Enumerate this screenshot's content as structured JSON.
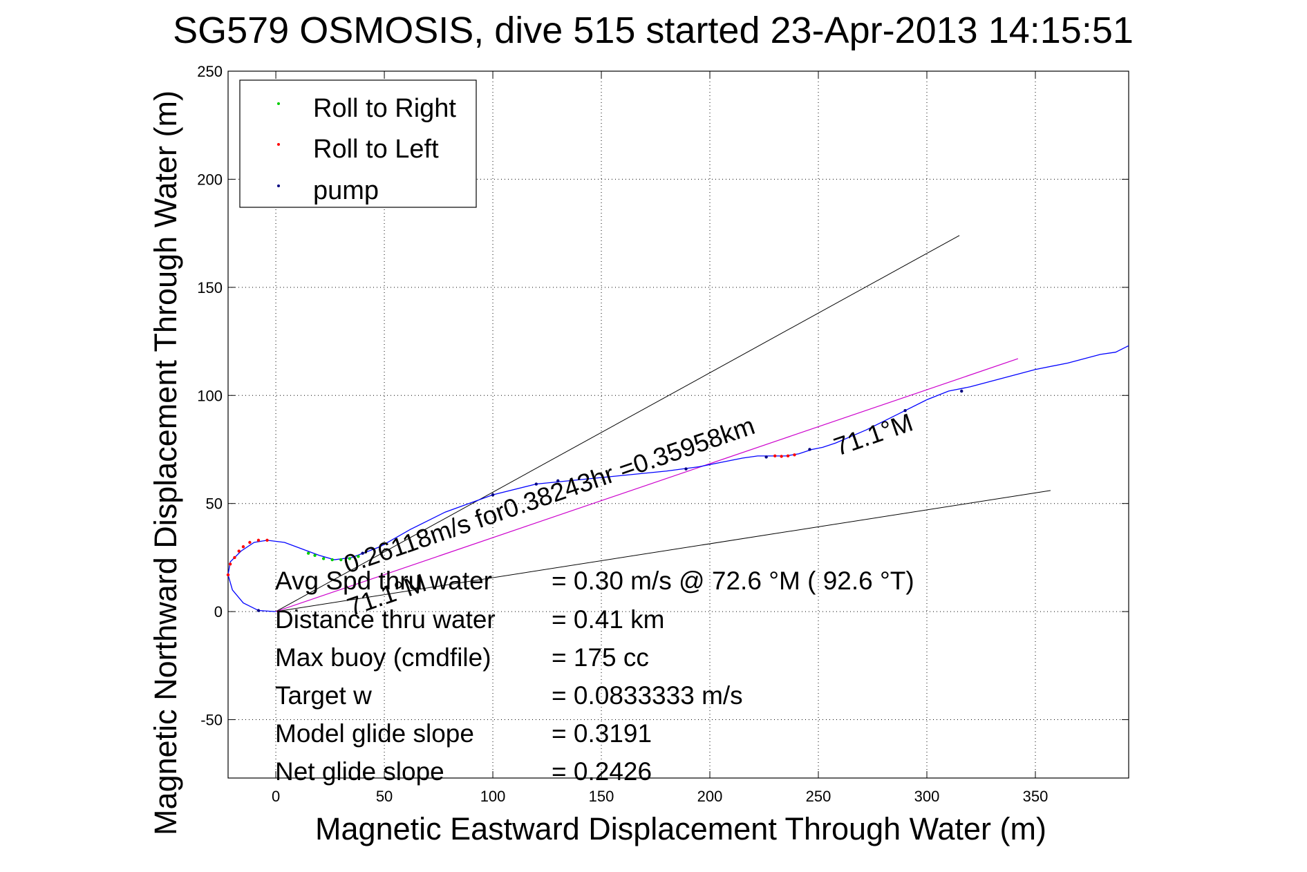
{
  "chart_data": {
    "type": "line",
    "title": "SG579 OSMOSIS, dive 515 started 23-Apr-2013 14:15:51",
    "xlabel": "Magnetic Eastward Displacement Through Water (m)",
    "ylabel": "Magnetic Northward Displacement Through Water (m)",
    "xlim": [
      -22,
      393
    ],
    "ylim": [
      -77,
      250
    ],
    "xticks": [
      0,
      50,
      100,
      150,
      200,
      250,
      300,
      350
    ],
    "yticks": [
      -50,
      0,
      50,
      100,
      150,
      200,
      250
    ],
    "grid": true,
    "legend_position": "top-left",
    "legend": [
      {
        "label": "Roll to Right",
        "color": "#00cc00"
      },
      {
        "label": "Roll to Left",
        "color": "#ff0000"
      },
      {
        "label": "pump",
        "color": "#000080"
      }
    ],
    "series": [
      {
        "color": "#0000ff",
        "x": [
          0,
          -8,
          -15,
          -20,
          -22,
          -21,
          -16,
          -10,
          -4,
          4,
          12,
          20,
          27,
          35,
          48,
          62,
          78,
          100,
          120,
          140,
          160,
          180,
          195,
          205,
          215,
          222,
          228,
          235,
          241,
          247,
          252,
          258,
          265,
          272,
          280,
          290,
          300,
          310,
          320,
          335,
          350,
          365,
          380,
          387,
          393
        ],
        "y": [
          0,
          0.5,
          4,
          10,
          17,
          23,
          28,
          32,
          33,
          32,
          29,
          26,
          24,
          25,
          30,
          38,
          46,
          54,
          59,
          61,
          63,
          65,
          67,
          69,
          71,
          72,
          72,
          72,
          73,
          75,
          76,
          78,
          81,
          84,
          88,
          93,
          98,
          102,
          104,
          108,
          112,
          115,
          119,
          120,
          123
        ]
      }
    ],
    "roll_right_points": {
      "x": [
        15,
        18,
        22,
        26,
        30,
        34,
        38
      ],
      "y": [
        27,
        26,
        24.5,
        24,
        24,
        24.5,
        25.5
      ]
    },
    "roll_left_points": {
      "x": [
        -22,
        -21,
        -19,
        -17,
        -15,
        -12,
        -8,
        -4,
        230,
        233,
        236,
        239
      ],
      "y": [
        17,
        22,
        25,
        28,
        30,
        32,
        33,
        33,
        72,
        71.8,
        72,
        72.5
      ]
    },
    "pump_points": {
      "x": [
        -8,
        40,
        100,
        120,
        130,
        189,
        226,
        246,
        290,
        316
      ],
      "y": [
        0.5,
        27,
        54,
        59,
        60.5,
        66,
        71.5,
        75,
        93,
        102
      ]
    },
    "heading_line": {
      "color": "#cc00cc",
      "x": [
        0,
        342
      ],
      "y": [
        0,
        117
      ]
    },
    "cone_lines": [
      {
        "color": "#000000",
        "x": [
          0,
          315
        ],
        "y": [
          0,
          174
        ]
      },
      {
        "color": "#000000",
        "x": [
          0,
          357
        ],
        "y": [
          0,
          56
        ]
      }
    ],
    "annotations": {
      "heading_start": "71.1°M",
      "heading_end": "71.1°M",
      "speed_line": "0.26118m/s for0.38243hr =0.35958km"
    },
    "stats": [
      {
        "label": "Avg Spd thru water",
        "value": "=  0.30 m/s @  72.6 °M ( 92.6 °T)"
      },
      {
        "label": "Distance thru water",
        "value": "=  0.41 km"
      },
      {
        "label": "Max buoy (cmdfile)",
        "value": "= 175 cc"
      },
      {
        "label": "Target w",
        "value": "= 0.0833333 m/s"
      },
      {
        "label": "Model glide slope",
        "value": "= 0.3191"
      },
      {
        "label": "Net glide slope",
        "value": "= 0.2426"
      }
    ]
  }
}
